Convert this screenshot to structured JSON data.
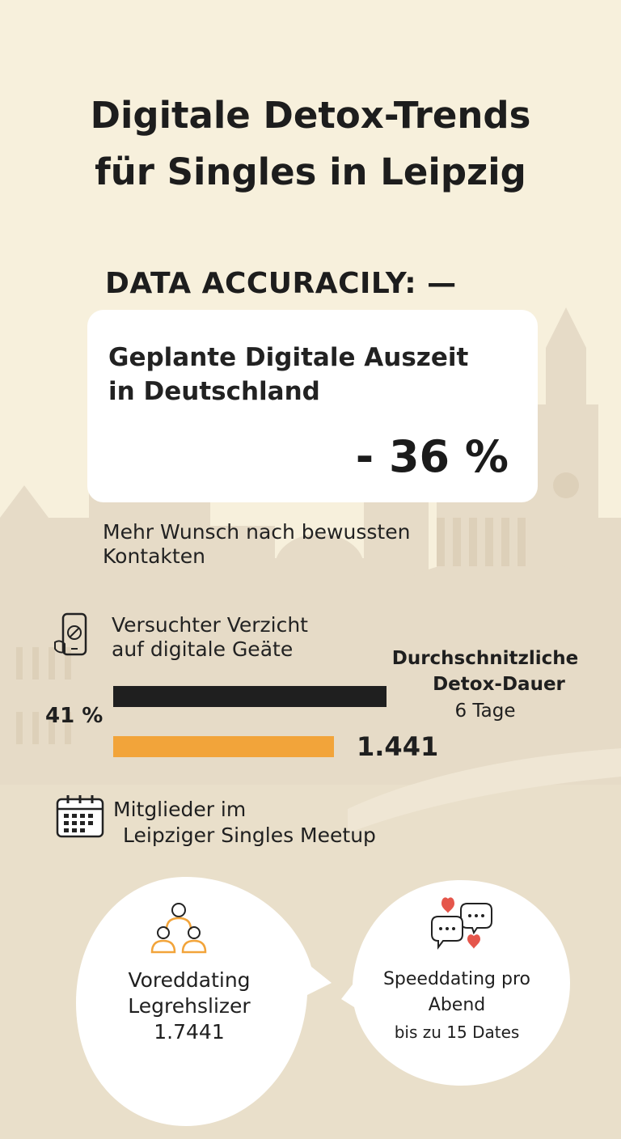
{
  "title": {
    "line1": "Digitale Detox-Trends",
    "line2": "für Singles in Leipzig"
  },
  "accuracy_label": "DATA ACCURACILY: —",
  "card": {
    "title_line1": "Geplante Digitale Auszeit",
    "title_line2": "in Deutschland",
    "value": "- 36 %"
  },
  "wish": {
    "line1": "Mehr Wunsch nach bewussten",
    "line2": "Kontakten"
  },
  "devices": {
    "icon": "phone-icon",
    "line1": "Versuchter Verzicht",
    "line2": "auf digitale Geäte",
    "percent_label": "41 %",
    "count_label": "1.441",
    "bar_colors": [
      "#1f1f1f",
      "#f2a43a"
    ]
  },
  "detox_duration": {
    "line1": "Durchschnitzliche",
    "line2": "Detox-Dauer",
    "value": "6 Tage"
  },
  "meetup": {
    "icon": "calendar-icon",
    "line1": "Mitglieder im",
    "line2": "Leipziger Singles Meetup"
  },
  "bubble_left": {
    "icon": "group-icon",
    "line1": "Voreddating",
    "line2": "Legrehslizer",
    "value": "1.7441"
  },
  "bubble_right": {
    "icon": "chat-hearts-icon",
    "line1": "Speeddating pro",
    "line2": "Abend",
    "value": "bis zu 15 Dates"
  },
  "colors": {
    "background": "#f7f0dc",
    "skyline": "#e6dbc7",
    "lower_area": "#e9dfca",
    "accent": "#f2a43a",
    "heart": "#e5564b"
  }
}
